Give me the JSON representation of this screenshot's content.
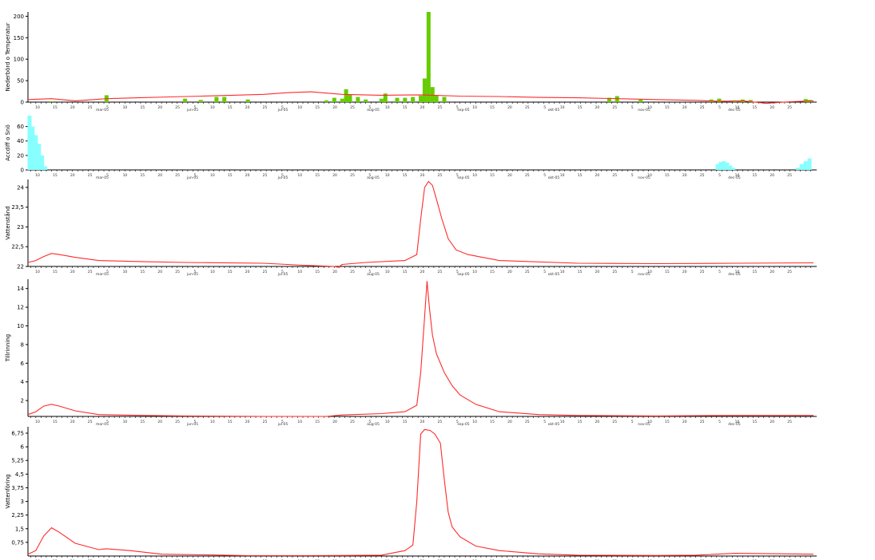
{
  "chart_data": [
    {
      "type": "bar",
      "ylabel": "Nederbörd o Temperatur",
      "ylim": [
        0,
        210
      ],
      "yticks": [
        "0",
        "50",
        "100",
        "150",
        "200"
      ],
      "x_month_labels": [
        "mar-05",
        "jun-05",
        "jul-05",
        "aug-05",
        "sep-05",
        "okt-05",
        "nov-05",
        "dec-05"
      ],
      "x_day_ticks": [
        "10",
        "15",
        "20",
        "25",
        "5",
        "10",
        "15",
        "20",
        "25",
        "5",
        "10",
        "15",
        "20",
        "25",
        "5",
        "10",
        "15",
        "20",
        "25",
        "5",
        "10",
        "15",
        "20",
        "25",
        "5",
        "10",
        "15",
        "20",
        "25",
        "5",
        "10",
        "15",
        "20",
        "25",
        "5",
        "10",
        "15",
        "20",
        "25",
        "5",
        "10",
        "15",
        "20",
        "25"
      ],
      "series": [
        {
          "kind": "bar",
          "color": "#66cc00",
          "points": [
            {
              "x": 0.03,
              "y": 2
            },
            {
              "x": 0.1,
              "y": 16
            },
            {
              "x": 0.2,
              "y": 8
            },
            {
              "x": 0.22,
              "y": 5
            },
            {
              "x": 0.24,
              "y": 12
            },
            {
              "x": 0.25,
              "y": 12
            },
            {
              "x": 0.28,
              "y": 6
            },
            {
              "x": 0.38,
              "y": 4
            },
            {
              "x": 0.39,
              "y": 10
            },
            {
              "x": 0.4,
              "y": 8
            },
            {
              "x": 0.405,
              "y": 30
            },
            {
              "x": 0.41,
              "y": 18
            },
            {
              "x": 0.42,
              "y": 12
            },
            {
              "x": 0.43,
              "y": 6
            },
            {
              "x": 0.45,
              "y": 8
            },
            {
              "x": 0.455,
              "y": 20
            },
            {
              "x": 0.47,
              "y": 10
            },
            {
              "x": 0.48,
              "y": 10
            },
            {
              "x": 0.49,
              "y": 12
            },
            {
              "x": 0.5,
              "y": 15
            },
            {
              "x": 0.505,
              "y": 55
            },
            {
              "x": 0.51,
              "y": 210
            },
            {
              "x": 0.515,
              "y": 35
            },
            {
              "x": 0.52,
              "y": 16
            },
            {
              "x": 0.53,
              "y": 12
            },
            {
              "x": 0.74,
              "y": 10
            },
            {
              "x": 0.75,
              "y": 14
            },
            {
              "x": 0.78,
              "y": 6
            },
            {
              "x": 0.87,
              "y": 6
            },
            {
              "x": 0.88,
              "y": 8
            },
            {
              "x": 0.9,
              "y": 4
            },
            {
              "x": 0.91,
              "y": 6
            },
            {
              "x": 0.92,
              "y": 5
            },
            {
              "x": 0.99,
              "y": 7
            },
            {
              "x": 0.995,
              "y": 5
            }
          ]
        },
        {
          "kind": "line",
          "color": "#ff2a2a",
          "points": [
            {
              "x": 0,
              "y": 6
            },
            {
              "x": 0.03,
              "y": 8
            },
            {
              "x": 0.06,
              "y": 3
            },
            {
              "x": 0.1,
              "y": 8
            },
            {
              "x": 0.14,
              "y": 10
            },
            {
              "x": 0.18,
              "y": 12
            },
            {
              "x": 0.22,
              "y": 14
            },
            {
              "x": 0.26,
              "y": 16
            },
            {
              "x": 0.3,
              "y": 18
            },
            {
              "x": 0.33,
              "y": 22
            },
            {
              "x": 0.36,
              "y": 24
            },
            {
              "x": 0.4,
              "y": 18
            },
            {
              "x": 0.45,
              "y": 16
            },
            {
              "x": 0.5,
              "y": 17
            },
            {
              "x": 0.55,
              "y": 14
            },
            {
              "x": 0.6,
              "y": 13
            },
            {
              "x": 0.65,
              "y": 11
            },
            {
              "x": 0.7,
              "y": 10
            },
            {
              "x": 0.75,
              "y": 8
            },
            {
              "x": 0.8,
              "y": 6
            },
            {
              "x": 0.85,
              "y": 4
            },
            {
              "x": 0.88,
              "y": 2
            },
            {
              "x": 0.91,
              "y": 3
            },
            {
              "x": 0.94,
              "y": -3
            },
            {
              "x": 0.97,
              "y": 1
            },
            {
              "x": 1,
              "y": 3
            }
          ]
        }
      ]
    },
    {
      "type": "bar",
      "ylabel": "Accdiff o Snö",
      "ylim": [
        0,
        75
      ],
      "yticks": [
        "0",
        "20",
        "40",
        "60"
      ],
      "x_month_labels": [
        "mar-05",
        "jun-05",
        "jul-05",
        "aug-05",
        "sep-05",
        "okt-05",
        "nov-05",
        "dec-05"
      ],
      "series": [
        {
          "kind": "bar",
          "color": "#88ffff",
          "points": [
            {
              "x": 0.002,
              "y": 75
            },
            {
              "x": 0.006,
              "y": 60
            },
            {
              "x": 0.01,
              "y": 48
            },
            {
              "x": 0.014,
              "y": 36
            },
            {
              "x": 0.018,
              "y": 20
            },
            {
              "x": 0.022,
              "y": 5
            },
            {
              "x": 0.878,
              "y": 8
            },
            {
              "x": 0.882,
              "y": 11
            },
            {
              "x": 0.886,
              "y": 12
            },
            {
              "x": 0.89,
              "y": 10
            },
            {
              "x": 0.894,
              "y": 6
            },
            {
              "x": 0.898,
              "y": 3
            },
            {
              "x": 0.98,
              "y": 3
            },
            {
              "x": 0.985,
              "y": 8
            },
            {
              "x": 0.99,
              "y": 12
            },
            {
              "x": 0.995,
              "y": 16
            }
          ]
        }
      ]
    },
    {
      "type": "line",
      "ylabel": "Vattenstånd",
      "ylim": [
        22,
        24.2
      ],
      "yticks": [
        "22",
        "22,5",
        "23",
        "23,5",
        "24"
      ],
      "x_month_labels": [
        "mar-05",
        "jun-05",
        "jul-05",
        "aug-05",
        "sep-05",
        "okt-05",
        "nov-05",
        "dec-05"
      ],
      "series": [
        {
          "color": "#ff2a2a",
          "points": [
            {
              "x": 0,
              "y": 22.1
            },
            {
              "x": 0.01,
              "y": 22.15
            },
            {
              "x": 0.02,
              "y": 22.25
            },
            {
              "x": 0.03,
              "y": 22.33
            },
            {
              "x": 0.04,
              "y": 22.3
            },
            {
              "x": 0.06,
              "y": 22.23
            },
            {
              "x": 0.09,
              "y": 22.15
            },
            {
              "x": 0.15,
              "y": 22.12
            },
            {
              "x": 0.2,
              "y": 22.1
            },
            {
              "x": 0.3,
              "y": 22.08
            },
            {
              "x": 0.35,
              "y": 22.03
            },
            {
              "x": 0.39,
              "y": 22
            },
            {
              "x": 0.395,
              "y": 21.98
            },
            {
              "x": 0.4,
              "y": 22.05
            },
            {
              "x": 0.43,
              "y": 22.1
            },
            {
              "x": 0.48,
              "y": 22.15
            },
            {
              "x": 0.495,
              "y": 22.3
            },
            {
              "x": 0.5,
              "y": 23.2
            },
            {
              "x": 0.505,
              "y": 24
            },
            {
              "x": 0.51,
              "y": 24.15
            },
            {
              "x": 0.515,
              "y": 24.05
            },
            {
              "x": 0.52,
              "y": 23.7
            },
            {
              "x": 0.527,
              "y": 23.2
            },
            {
              "x": 0.535,
              "y": 22.7
            },
            {
              "x": 0.545,
              "y": 22.42
            },
            {
              "x": 0.56,
              "y": 22.3
            },
            {
              "x": 0.6,
              "y": 22.15
            },
            {
              "x": 0.7,
              "y": 22.08
            },
            {
              "x": 0.8,
              "y": 22.07
            },
            {
              "x": 0.9,
              "y": 22.08
            },
            {
              "x": 1,
              "y": 22.09
            }
          ]
        }
      ]
    },
    {
      "type": "line",
      "ylabel": "Tillrinning",
      "ylim": [
        0.3,
        15
      ],
      "yticks": [
        "2",
        "4",
        "6",
        "8",
        "10",
        "12",
        "14"
      ],
      "x_month_labels": [
        "mar-05",
        "jun-05",
        "jul-05",
        "aug-05",
        "sep-05",
        "okt-05",
        "nov-05",
        "dec-05"
      ],
      "series": [
        {
          "color": "#ff2a2a",
          "points": [
            {
              "x": 0,
              "y": 0.5
            },
            {
              "x": 0.01,
              "y": 0.8
            },
            {
              "x": 0.02,
              "y": 1.4
            },
            {
              "x": 0.03,
              "y": 1.6
            },
            {
              "x": 0.04,
              "y": 1.4
            },
            {
              "x": 0.06,
              "y": 0.9
            },
            {
              "x": 0.09,
              "y": 0.5
            },
            {
              "x": 0.15,
              "y": 0.4
            },
            {
              "x": 0.2,
              "y": 0.35
            },
            {
              "x": 0.3,
              "y": 0.3
            },
            {
              "x": 0.38,
              "y": 0.3
            },
            {
              "x": 0.4,
              "y": 0.45
            },
            {
              "x": 0.45,
              "y": 0.6
            },
            {
              "x": 0.48,
              "y": 0.8
            },
            {
              "x": 0.495,
              "y": 1.5
            },
            {
              "x": 0.5,
              "y": 5
            },
            {
              "x": 0.505,
              "y": 11
            },
            {
              "x": 0.508,
              "y": 14.8
            },
            {
              "x": 0.511,
              "y": 12
            },
            {
              "x": 0.515,
              "y": 9
            },
            {
              "x": 0.52,
              "y": 7
            },
            {
              "x": 0.53,
              "y": 5
            },
            {
              "x": 0.54,
              "y": 3.6
            },
            {
              "x": 0.55,
              "y": 2.6
            },
            {
              "x": 0.57,
              "y": 1.6
            },
            {
              "x": 0.6,
              "y": 0.8
            },
            {
              "x": 0.65,
              "y": 0.5
            },
            {
              "x": 0.7,
              "y": 0.4
            },
            {
              "x": 0.8,
              "y": 0.35
            },
            {
              "x": 0.9,
              "y": 0.4
            },
            {
              "x": 1,
              "y": 0.4
            }
          ]
        }
      ]
    },
    {
      "type": "line",
      "ylabel": "Vattenföring",
      "ylim": [
        0,
        7.1
      ],
      "yticks": [
        "0,75",
        "1,5",
        "2,25",
        "3",
        "3,75",
        "4,5",
        "5,25",
        "6",
        "6,75"
      ],
      "x_month_labels": [
        "mar-05",
        "jun-05",
        "jul-05",
        "aug-05",
        "sep-05",
        "okt-05",
        "nov-05",
        "dec-05"
      ],
      "series": [
        {
          "color": "#ff2a2a",
          "points": [
            {
              "x": 0,
              "y": 0.1
            },
            {
              "x": 0.01,
              "y": 0.3
            },
            {
              "x": 0.02,
              "y": 1.1
            },
            {
              "x": 0.03,
              "y": 1.55
            },
            {
              "x": 0.04,
              "y": 1.3
            },
            {
              "x": 0.06,
              "y": 0.7
            },
            {
              "x": 0.09,
              "y": 0.35
            },
            {
              "x": 0.1,
              "y": 0.4
            },
            {
              "x": 0.13,
              "y": 0.3
            },
            {
              "x": 0.17,
              "y": 0.1
            },
            {
              "x": 0.25,
              "y": 0.05
            },
            {
              "x": 0.28,
              "y": 0.02
            },
            {
              "x": 0.35,
              "y": 0.02
            },
            {
              "x": 0.4,
              "y": 0.03
            },
            {
              "x": 0.45,
              "y": 0.05
            },
            {
              "x": 0.48,
              "y": 0.3
            },
            {
              "x": 0.49,
              "y": 0.6
            },
            {
              "x": 0.495,
              "y": 3
            },
            {
              "x": 0.5,
              "y": 6.7
            },
            {
              "x": 0.505,
              "y": 6.95
            },
            {
              "x": 0.512,
              "y": 6.9
            },
            {
              "x": 0.518,
              "y": 6.7
            },
            {
              "x": 0.525,
              "y": 6.2
            },
            {
              "x": 0.53,
              "y": 4.2
            },
            {
              "x": 0.535,
              "y": 2.4
            },
            {
              "x": 0.54,
              "y": 1.6
            },
            {
              "x": 0.55,
              "y": 1.05
            },
            {
              "x": 0.57,
              "y": 0.55
            },
            {
              "x": 0.6,
              "y": 0.3
            },
            {
              "x": 0.65,
              "y": 0.12
            },
            {
              "x": 0.7,
              "y": 0.05
            },
            {
              "x": 0.8,
              "y": 0.03
            },
            {
              "x": 0.85,
              "y": 0.05
            },
            {
              "x": 0.9,
              "y": 0.15
            },
            {
              "x": 1,
              "y": 0.1
            }
          ]
        }
      ]
    }
  ]
}
